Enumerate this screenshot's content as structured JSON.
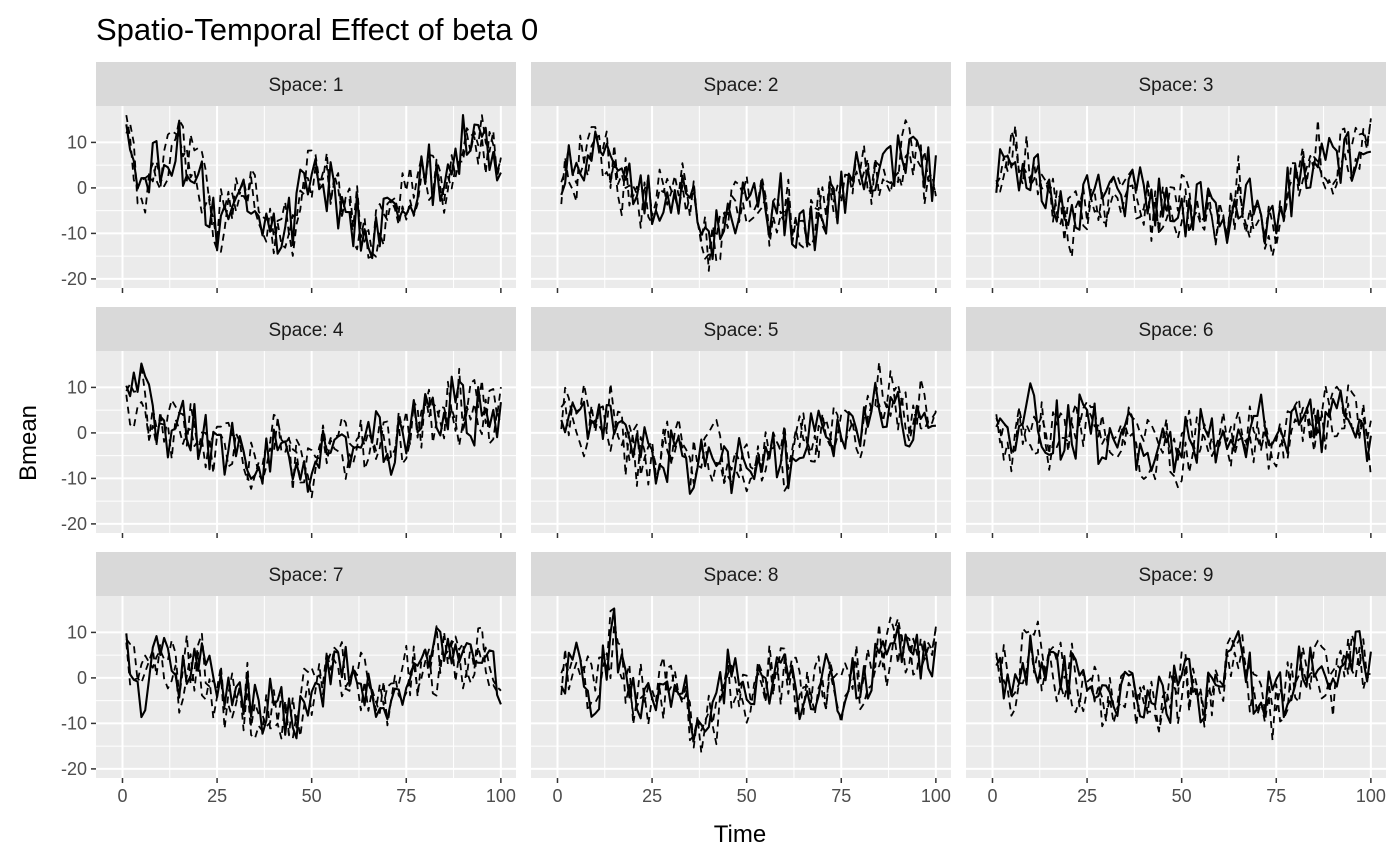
{
  "chart_data": {
    "type": "line",
    "title": "Spatio-Temporal Effect of beta 0",
    "xlabel": "Time",
    "ylabel": "Bmean",
    "facet_label_prefix": "Space: ",
    "xlim": [
      0,
      100
    ],
    "ylim": [
      -22,
      18
    ],
    "x_ticks": [
      0,
      25,
      50,
      75,
      100
    ],
    "y_ticks": [
      -20,
      -10,
      0,
      10
    ],
    "grid": true,
    "legend": "none",
    "colors": {
      "panel_background": "#ebebeb",
      "strip_background": "#d9d9d9",
      "grid": "#ffffff",
      "line": "#000000"
    },
    "line_styles": [
      "solid",
      "dashed",
      "dashed"
    ],
    "facets": [
      {
        "space": "1",
        "x": [
          1,
          5,
          10,
          15,
          20,
          25,
          30,
          35,
          40,
          45,
          50,
          55,
          60,
          65,
          70,
          75,
          80,
          85,
          90,
          95,
          100
        ],
        "values": [
          12,
          -1,
          6,
          8,
          2,
          -9,
          -3,
          -1,
          -11,
          -7,
          4,
          -2,
          -4,
          -12,
          -5,
          -4,
          6,
          -3,
          10,
          12,
          3
        ]
      },
      {
        "space": "2",
        "x": [
          1,
          5,
          10,
          15,
          20,
          25,
          30,
          35,
          40,
          45,
          50,
          55,
          60,
          65,
          70,
          75,
          80,
          85,
          90,
          95,
          100
        ],
        "values": [
          5,
          4,
          11,
          3,
          0,
          -2,
          -1,
          -3,
          -14,
          -6,
          -1,
          -5,
          -4,
          -10,
          -4,
          -2,
          5,
          3,
          6,
          8,
          1
        ]
      },
      {
        "space": "3",
        "x": [
          1,
          5,
          10,
          15,
          20,
          25,
          30,
          35,
          40,
          45,
          50,
          55,
          60,
          65,
          70,
          75,
          80,
          85,
          90,
          95,
          100
        ],
        "values": [
          2,
          9,
          4,
          0,
          -8,
          -2,
          -3,
          0,
          -3,
          -5,
          -4,
          -3,
          -9,
          -2,
          -6,
          -11,
          3,
          7,
          4,
          8,
          12
        ]
      },
      {
        "space": "4",
        "x": [
          1,
          5,
          10,
          15,
          20,
          25,
          30,
          35,
          40,
          45,
          50,
          55,
          60,
          65,
          70,
          75,
          80,
          85,
          90,
          95,
          100
        ],
        "values": [
          6,
          9,
          -2,
          3,
          -1,
          -4,
          -2,
          -8,
          -2,
          -5,
          -10,
          -1,
          -3,
          1,
          -2,
          -1,
          3,
          4,
          6,
          3,
          5
        ]
      },
      {
        "space": "5",
        "x": [
          1,
          5,
          10,
          15,
          20,
          25,
          30,
          35,
          40,
          45,
          50,
          55,
          60,
          65,
          70,
          75,
          80,
          85,
          90,
          95,
          100
        ],
        "values": [
          7,
          4,
          2,
          3,
          -4,
          -6,
          -3,
          -9,
          -5,
          -7,
          -8,
          -4,
          -6,
          -1,
          -2,
          3,
          0,
          7,
          5,
          2,
          6
        ]
      },
      {
        "space": "6",
        "x": [
          1,
          5,
          10,
          15,
          20,
          25,
          30,
          35,
          40,
          45,
          50,
          55,
          60,
          65,
          70,
          75,
          80,
          85,
          90,
          95,
          100
        ],
        "values": [
          2,
          -3,
          5,
          -1,
          0,
          4,
          -4,
          1,
          -6,
          -2,
          -5,
          0,
          -3,
          -1,
          2,
          -4,
          5,
          -1,
          4,
          6,
          -2
        ]
      },
      {
        "space": "7",
        "x": [
          1,
          5,
          10,
          15,
          20,
          25,
          30,
          35,
          40,
          45,
          50,
          55,
          60,
          65,
          70,
          75,
          80,
          85,
          90,
          95,
          100
        ],
        "values": [
          3,
          -2,
          5,
          0,
          4,
          -4,
          -3,
          -7,
          -6,
          -10,
          -2,
          1,
          2,
          -3,
          -5,
          -1,
          2,
          6,
          3,
          5,
          -1
        ]
      },
      {
        "space": "8",
        "x": [
          1,
          5,
          10,
          15,
          20,
          25,
          30,
          35,
          40,
          45,
          50,
          55,
          60,
          65,
          70,
          75,
          80,
          85,
          90,
          95,
          100
        ],
        "values": [
          0,
          4,
          -2,
          8,
          -5,
          -3,
          -2,
          -8,
          -10,
          -1,
          -3,
          -2,
          2,
          -4,
          -1,
          -3,
          0,
          6,
          9,
          4,
          7
        ]
      },
      {
        "space": "9",
        "x": [
          1,
          5,
          10,
          15,
          20,
          25,
          30,
          35,
          40,
          45,
          50,
          55,
          60,
          65,
          70,
          75,
          80,
          85,
          90,
          95,
          100
        ],
        "values": [
          1,
          -2,
          5,
          3,
          -1,
          0,
          -4,
          -2,
          -7,
          -5,
          -1,
          -4,
          0,
          6,
          -3,
          -6,
          -1,
          3,
          -2,
          5,
          3
        ]
      }
    ]
  }
}
